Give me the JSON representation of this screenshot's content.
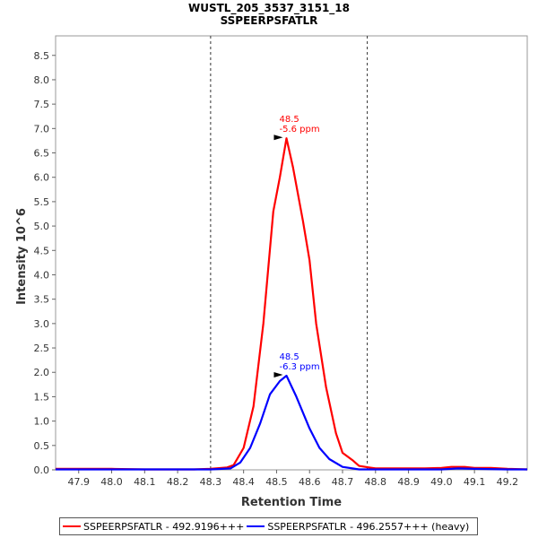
{
  "chart_data": {
    "type": "line",
    "title": "WUSTL_205_3537_3151_18",
    "subtitle": "SSPEERPSFATLR",
    "xlabel": "Retention Time",
    "ylabel": "Intensity 10^6",
    "xlim": [
      47.83,
      49.26
    ],
    "ylim": [
      0,
      8.9
    ],
    "x_ticks": [
      "47.9",
      "48.0",
      "48.1",
      "48.2",
      "48.3",
      "48.4",
      "48.5",
      "48.6",
      "48.7",
      "48.8",
      "48.9",
      "49.0",
      "49.1",
      "49.2"
    ],
    "y_ticks": [
      "0.0",
      "0.5",
      "1.0",
      "1.5",
      "2.0",
      "2.5",
      "3.0",
      "3.5",
      "4.0",
      "4.5",
      "5.0",
      "5.5",
      "6.0",
      "6.5",
      "7.0",
      "7.5",
      "8.0",
      "8.5"
    ],
    "vlines": [
      48.3,
      48.775
    ],
    "grid": false,
    "legend_position": "bottom",
    "series": [
      {
        "name": "SSPEERPSFATLR - 492.9196+++",
        "color": "#ff0000",
        "x": [
          47.83,
          47.9,
          48.0,
          48.1,
          48.17,
          48.25,
          48.3,
          48.35,
          48.37,
          48.4,
          48.43,
          48.46,
          48.49,
          48.51,
          48.53,
          48.55,
          48.58,
          48.6,
          48.62,
          48.65,
          48.68,
          48.7,
          48.73,
          48.75,
          48.78,
          48.8,
          48.85,
          48.9,
          48.95,
          49.0,
          49.03,
          49.07,
          49.1,
          49.15,
          49.2,
          49.26
        ],
        "y": [
          0.02,
          0.02,
          0.02,
          0.01,
          0.01,
          0.01,
          0.02,
          0.05,
          0.1,
          0.45,
          1.3,
          3.0,
          5.3,
          6.0,
          6.8,
          6.2,
          5.1,
          4.3,
          3.0,
          1.7,
          0.75,
          0.35,
          0.2,
          0.08,
          0.05,
          0.03,
          0.03,
          0.03,
          0.03,
          0.04,
          0.06,
          0.06,
          0.04,
          0.04,
          0.02,
          0.01
        ]
      },
      {
        "name": "SSPEERPSFATLR - 496.2557+++ (heavy)",
        "color": "#0000ff",
        "x": [
          47.83,
          47.9,
          48.0,
          48.1,
          48.2,
          48.3,
          48.36,
          48.39,
          48.42,
          48.45,
          48.48,
          48.51,
          48.53,
          48.56,
          48.6,
          48.63,
          48.66,
          48.7,
          48.75,
          48.8,
          48.9,
          49.0,
          49.05,
          49.1,
          49.2,
          49.26
        ],
        "y": [
          0.01,
          0.01,
          0.01,
          0.01,
          0.01,
          0.01,
          0.03,
          0.15,
          0.45,
          0.95,
          1.55,
          1.82,
          1.93,
          1.5,
          0.85,
          0.45,
          0.22,
          0.06,
          0.01,
          0.01,
          0.01,
          0.01,
          0.03,
          0.02,
          0.01,
          0.01
        ]
      }
    ],
    "annotations": [
      {
        "x": 48.53,
        "y": 6.8,
        "line1": "48.5",
        "line2": "-5.6 ppm",
        "color": "#ff0000"
      },
      {
        "x": 48.53,
        "y": 1.93,
        "line1": "48.5",
        "line2": "-6.3 ppm",
        "color": "#0000ff"
      }
    ]
  },
  "legend": {
    "item1": "SSPEERPSFATLR - 492.9196+++",
    "item2": "SSPEERPSFATLR - 496.2557+++ (heavy)"
  }
}
